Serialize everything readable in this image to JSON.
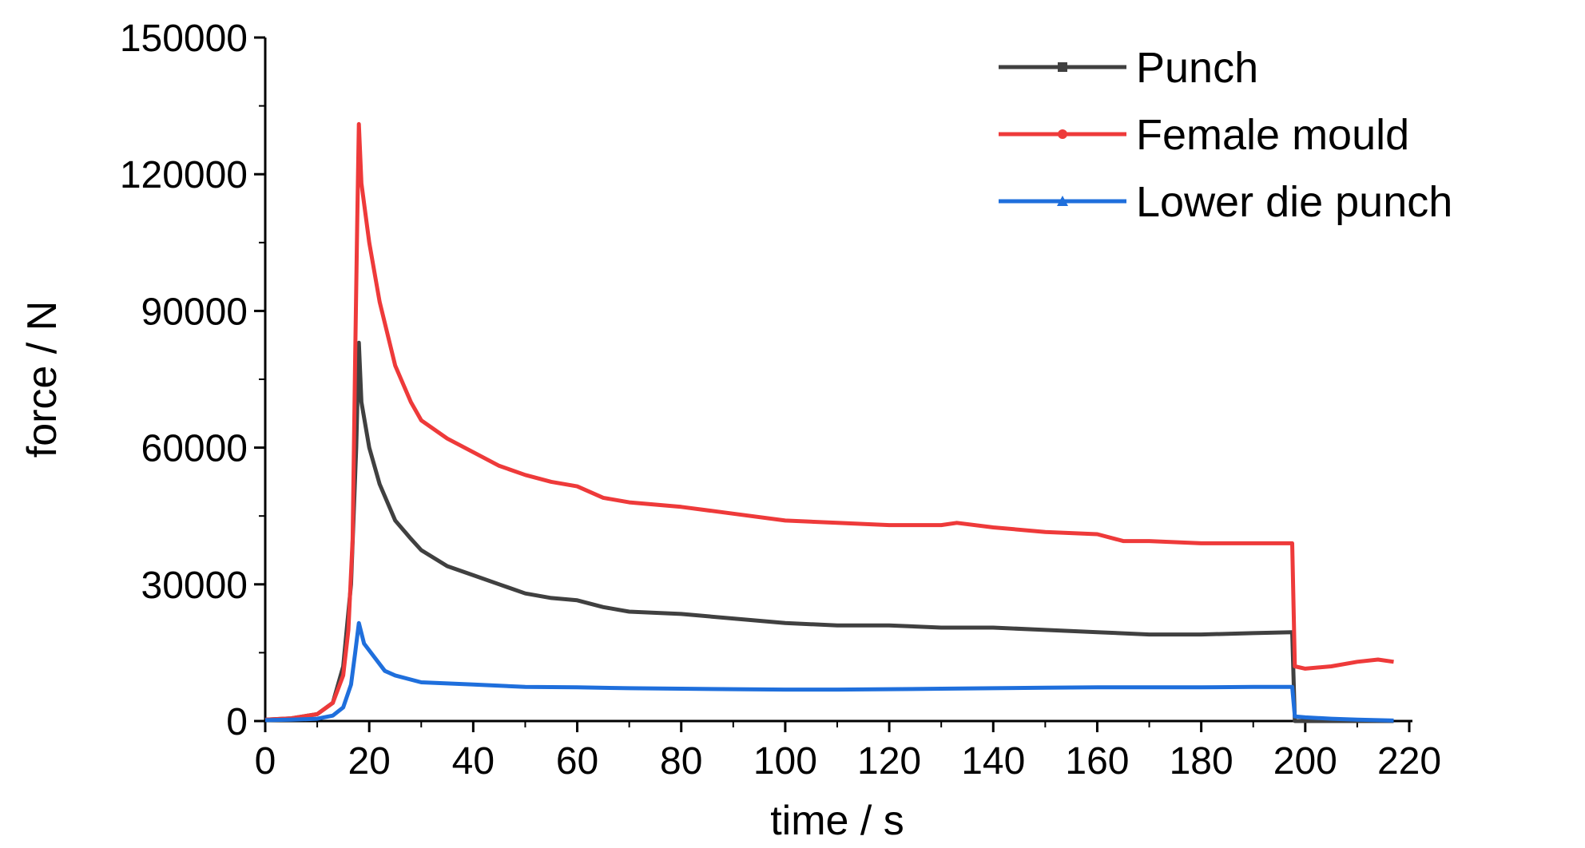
{
  "chart_data": {
    "type": "line",
    "xlabel": "time / s",
    "ylabel": "force / N",
    "xlim": [
      0,
      220
    ],
    "ylim": [
      0,
      150000
    ],
    "xticks": [
      "0",
      "20",
      "40",
      "60",
      "80",
      "100",
      "120",
      "140",
      "160",
      "180",
      "200",
      "220"
    ],
    "yticks": [
      "0",
      "30000",
      "60000",
      "90000",
      "120000",
      "150000"
    ],
    "grid": false,
    "legend_position": "top-right",
    "series": [
      {
        "name": "Punch",
        "color": "#404040",
        "marker": "square",
        "points": [
          [
            0,
            300
          ],
          [
            5,
            600
          ],
          [
            10,
            1500
          ],
          [
            13,
            4000
          ],
          [
            15,
            12000
          ],
          [
            16.5,
            30000
          ],
          [
            17.5,
            60000
          ],
          [
            18,
            83000
          ],
          [
            18.5,
            70000
          ],
          [
            20,
            60000
          ],
          [
            22,
            52000
          ],
          [
            25,
            44000
          ],
          [
            28,
            40000
          ],
          [
            30,
            37500
          ],
          [
            35,
            34000
          ],
          [
            40,
            32000
          ],
          [
            45,
            30000
          ],
          [
            50,
            28000
          ],
          [
            55,
            27000
          ],
          [
            60,
            26500
          ],
          [
            65,
            25000
          ],
          [
            70,
            24000
          ],
          [
            80,
            23500
          ],
          [
            90,
            22500
          ],
          [
            100,
            21500
          ],
          [
            110,
            21000
          ],
          [
            120,
            21000
          ],
          [
            130,
            20500
          ],
          [
            140,
            20500
          ],
          [
            150,
            20000
          ],
          [
            160,
            19500
          ],
          [
            170,
            19000
          ],
          [
            180,
            19000
          ],
          [
            190,
            19300
          ],
          [
            197.5,
            19500
          ],
          [
            198,
            0
          ],
          [
            200,
            0
          ],
          [
            210,
            0
          ],
          [
            217,
            0
          ]
        ]
      },
      {
        "name": "Female mould",
        "color": "#ee3a3a",
        "marker": "circle",
        "points": [
          [
            0,
            300
          ],
          [
            5,
            600
          ],
          [
            10,
            1500
          ],
          [
            13,
            4000
          ],
          [
            15,
            10000
          ],
          [
            16,
            20000
          ],
          [
            16.8,
            40000
          ],
          [
            17.3,
            80000
          ],
          [
            17.7,
            110000
          ],
          [
            18,
            131000
          ],
          [
            18.5,
            118000
          ],
          [
            20,
            105000
          ],
          [
            22,
            92000
          ],
          [
            25,
            78000
          ],
          [
            28,
            70000
          ],
          [
            30,
            66000
          ],
          [
            35,
            62000
          ],
          [
            40,
            59000
          ],
          [
            45,
            56000
          ],
          [
            50,
            54000
          ],
          [
            55,
            52500
          ],
          [
            60,
            51500
          ],
          [
            65,
            49000
          ],
          [
            70,
            48000
          ],
          [
            80,
            47000
          ],
          [
            90,
            45500
          ],
          [
            100,
            44000
          ],
          [
            110,
            43500
          ],
          [
            120,
            43000
          ],
          [
            130,
            43000
          ],
          [
            133,
            43500
          ],
          [
            140,
            42500
          ],
          [
            150,
            41500
          ],
          [
            160,
            41000
          ],
          [
            165,
            39500
          ],
          [
            170,
            39500
          ],
          [
            180,
            39000
          ],
          [
            190,
            39000
          ],
          [
            197.5,
            39000
          ],
          [
            198,
            12000
          ],
          [
            200,
            11500
          ],
          [
            205,
            12000
          ],
          [
            210,
            13000
          ],
          [
            214,
            13500
          ],
          [
            217,
            13000
          ]
        ]
      },
      {
        "name": "Lower die punch",
        "color": "#1f6fdc",
        "marker": "triangle",
        "points": [
          [
            0,
            200
          ],
          [
            5,
            300
          ],
          [
            10,
            500
          ],
          [
            13,
            1200
          ],
          [
            15,
            3000
          ],
          [
            16.5,
            8000
          ],
          [
            17.3,
            15000
          ],
          [
            18,
            21500
          ],
          [
            19,
            17000
          ],
          [
            21,
            14000
          ],
          [
            23,
            11000
          ],
          [
            25,
            10000
          ],
          [
            30,
            8500
          ],
          [
            40,
            8000
          ],
          [
            50,
            7500
          ],
          [
            60,
            7400
          ],
          [
            70,
            7200
          ],
          [
            80,
            7100
          ],
          [
            90,
            7000
          ],
          [
            100,
            6900
          ],
          [
            110,
            6900
          ],
          [
            120,
            7000
          ],
          [
            130,
            7100
          ],
          [
            140,
            7200
          ],
          [
            150,
            7300
          ],
          [
            160,
            7400
          ],
          [
            170,
            7400
          ],
          [
            180,
            7400
          ],
          [
            190,
            7500
          ],
          [
            197.5,
            7500
          ],
          [
            198,
            1000
          ],
          [
            200,
            800
          ],
          [
            205,
            500
          ],
          [
            210,
            300
          ],
          [
            217,
            100
          ]
        ]
      }
    ]
  }
}
